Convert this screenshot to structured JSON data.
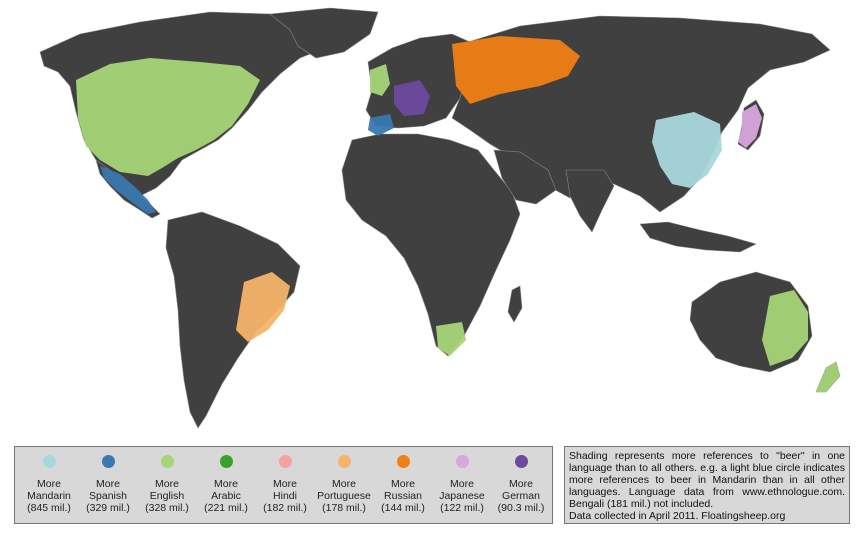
{
  "map": {
    "background_color": "#ffffff",
    "land_color": "#404040",
    "border_color": "#888888"
  },
  "legend": {
    "items": [
      {
        "line1": "More",
        "language": "Mandarin",
        "speakers": "(845 mil.)",
        "color": "#a8d8dc"
      },
      {
        "line1": "More",
        "language": "Spanish",
        "speakers": "(329 mil.)",
        "color": "#3a78b0"
      },
      {
        "line1": "More",
        "language": "English",
        "speakers": "(328 mil.)",
        "color": "#a6d577"
      },
      {
        "line1": "More",
        "language": "Arabic",
        "speakers": "(221 mil.)",
        "color": "#38a32a"
      },
      {
        "line1": "More",
        "language": "Hindi",
        "speakers": "(182 mil.)",
        "color": "#f4a3a0"
      },
      {
        "line1": "More",
        "language": "Portuguese",
        "speakers": "(178 mil.)",
        "color": "#f5b468"
      },
      {
        "line1": "More",
        "language": "Russian",
        "speakers": "(144 mil.)",
        "color": "#f07f14"
      },
      {
        "line1": "More",
        "language": "Japanese",
        "speakers": "(122 mil.)",
        "color": "#d9a6dd"
      },
      {
        "line1": "More",
        "language": "German",
        "speakers": "(90.3 mil.)",
        "color": "#6d4aa0"
      }
    ]
  },
  "note": {
    "line1": "Shading represents more references to \"beer\" in one language than to all others. e.g. a light blue circle indicates more references to beer in Mandarin than in all other languages. Language data from www.ethnologue.com. Bengali (181 mil.) not included.",
    "line2": "Data collected in April 2011. Floatingsheep.org"
  }
}
